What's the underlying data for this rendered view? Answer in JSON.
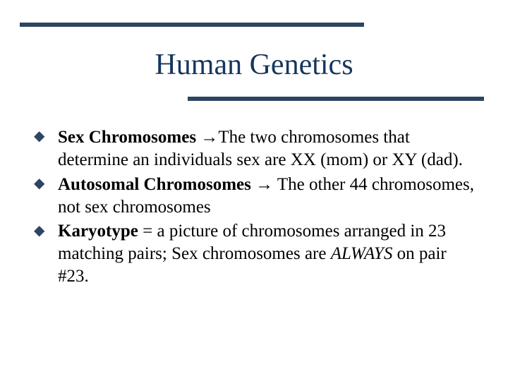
{
  "colors": {
    "title": "#17365d",
    "body": "#000000",
    "rule": "#2d4560",
    "bullet": "#2d4560",
    "background": "#ffffff"
  },
  "typography": {
    "title_fontsize": 42,
    "body_fontsize": 25,
    "font_family": "Times New Roman"
  },
  "title": "Human Genetics",
  "bullets": [
    {
      "bold": "Sex Chromosomes ",
      "arrow": "→",
      "rest": "The two chromosomes that determine an individuals sex are    XX   (mom) or XY (dad)."
    },
    {
      "bold": "Autosomal Chromosomes ",
      "arrow": "→",
      "rest": " The other 44 chromosomes, not sex chromosomes"
    },
    {
      "bold": "Karyotype",
      "arrow": "",
      "rest_pre": " = a picture of chromosomes arranged in 23 matching pairs; Sex chromosomes are ",
      "rest_italic": "ALWAYS",
      "rest_post": " on pair #23."
    }
  ],
  "bullet_glyph": "◆"
}
